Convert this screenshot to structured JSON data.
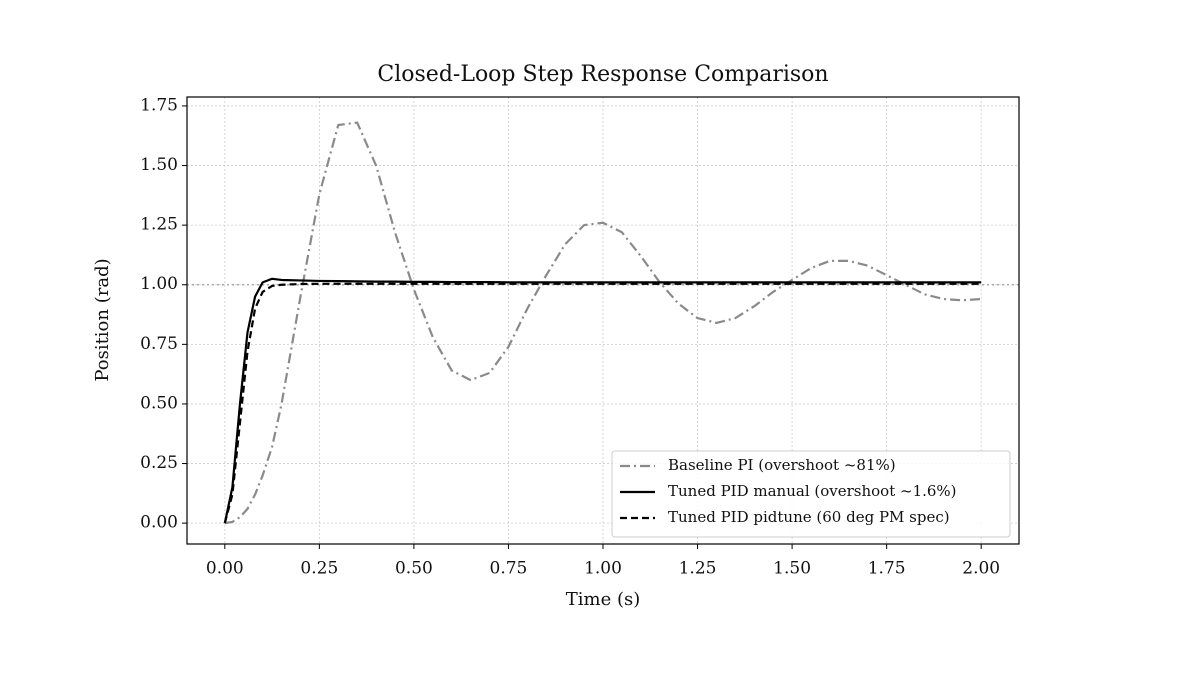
{
  "chart_data": {
    "type": "line",
    "title": "Closed-Loop Step Response Comparison",
    "x_label": "Time (s)",
    "y_label": "Position (rad)",
    "x": [
      0,
      0.02,
      0.04,
      0.06,
      0.08,
      0.1,
      0.125,
      0.15,
      0.2,
      0.25,
      0.3,
      0.35,
      0.4,
      0.45,
      0.5,
      0.55,
      0.6,
      0.65,
      0.7,
      0.75,
      0.8,
      0.85,
      0.9,
      0.95,
      1.0,
      1.05,
      1.1,
      1.15,
      1.2,
      1.25,
      1.3,
      1.35,
      1.4,
      1.45,
      1.5,
      1.55,
      1.6,
      1.65,
      1.7,
      1.75,
      1.8,
      1.85,
      1.9,
      1.95,
      2.0
    ],
    "series": [
      {
        "name": "Baseline PI (overshoot ~81%)",
        "color": "#8a8a8a",
        "linestyle": "dashdot",
        "values": [
          0,
          0.005,
          0.025,
          0.06,
          0.12,
          0.2,
          0.32,
          0.5,
          0.95,
          1.38,
          1.67,
          1.68,
          1.5,
          1.22,
          0.98,
          0.78,
          0.64,
          0.6,
          0.63,
          0.74,
          0.9,
          1.04,
          1.17,
          1.25,
          1.26,
          1.22,
          1.12,
          1.01,
          0.92,
          0.86,
          0.84,
          0.86,
          0.91,
          0.97,
          1.02,
          1.07,
          1.1,
          1.1,
          1.08,
          1.04,
          1.0,
          0.96,
          0.94,
          0.935,
          0.94
        ]
      },
      {
        "name": "Tuned PID manual (overshoot ~1.6%)",
        "color": "#000000",
        "linestyle": "solid",
        "values": [
          0,
          0.15,
          0.5,
          0.8,
          0.95,
          1.01,
          1.025,
          1.02,
          1.018,
          1.016,
          1.015,
          1.014,
          1.013,
          1.013,
          1.012,
          1.012,
          1.011,
          1.011,
          1.011,
          1.01,
          1.01,
          1.01,
          1.01,
          1.01,
          1.01,
          1.01,
          1.01,
          1.01,
          1.01,
          1.01,
          1.01,
          1.01,
          1.01,
          1.01,
          1.01,
          1.01,
          1.01,
          1.01,
          1.01,
          1.01,
          1.01,
          1.01,
          1.01,
          1.01,
          1.01
        ]
      },
      {
        "name": "Tuned PID pidtune (60 deg PM spec)",
        "color": "#000000",
        "linestyle": "dashed",
        "values": [
          0,
          0.12,
          0.42,
          0.72,
          0.9,
          0.97,
          0.995,
          1.0,
          1.003,
          1.004,
          1.004,
          1.004,
          1.004,
          1.004,
          1.004,
          1.004,
          1.004,
          1.004,
          1.004,
          1.004,
          1.004,
          1.004,
          1.004,
          1.004,
          1.004,
          1.004,
          1.004,
          1.004,
          1.004,
          1.004,
          1.004,
          1.004,
          1.004,
          1.004,
          1.004,
          1.004,
          1.004,
          1.004,
          1.004,
          1.004,
          1.004,
          1.004,
          1.004,
          1.004,
          1.004
        ]
      }
    ],
    "reference_line": 1,
    "xlim": [
      -0.1,
      2.1
    ],
    "ylim": [
      -0.0875,
      1.7875
    ],
    "xticks": [
      {
        "value": 0,
        "label": "0.00"
      },
      {
        "value": 0.25,
        "label": "0.25"
      },
      {
        "value": 0.5,
        "label": "0.50"
      },
      {
        "value": 0.75,
        "label": "0.75"
      },
      {
        "value": 1,
        "label": "1.00"
      },
      {
        "value": 1.25,
        "label": "1.25"
      },
      {
        "value": 1.5,
        "label": "1.50"
      },
      {
        "value": 1.75,
        "label": "1.75"
      },
      {
        "value": 2,
        "label": "2.00"
      }
    ],
    "yticks": [
      {
        "value": 0,
        "label": "0.00"
      },
      {
        "value": 0.25,
        "label": "0.25"
      },
      {
        "value": 0.5,
        "label": "0.50"
      },
      {
        "value": 0.75,
        "label": "0.75"
      },
      {
        "value": 1,
        "label": "1.00"
      },
      {
        "value": 1.25,
        "label": "1.25"
      },
      {
        "value": 1.5,
        "label": "1.50"
      },
      {
        "value": 1.75,
        "label": "1.75"
      }
    ],
    "grid": true,
    "legend": "lower right"
  }
}
